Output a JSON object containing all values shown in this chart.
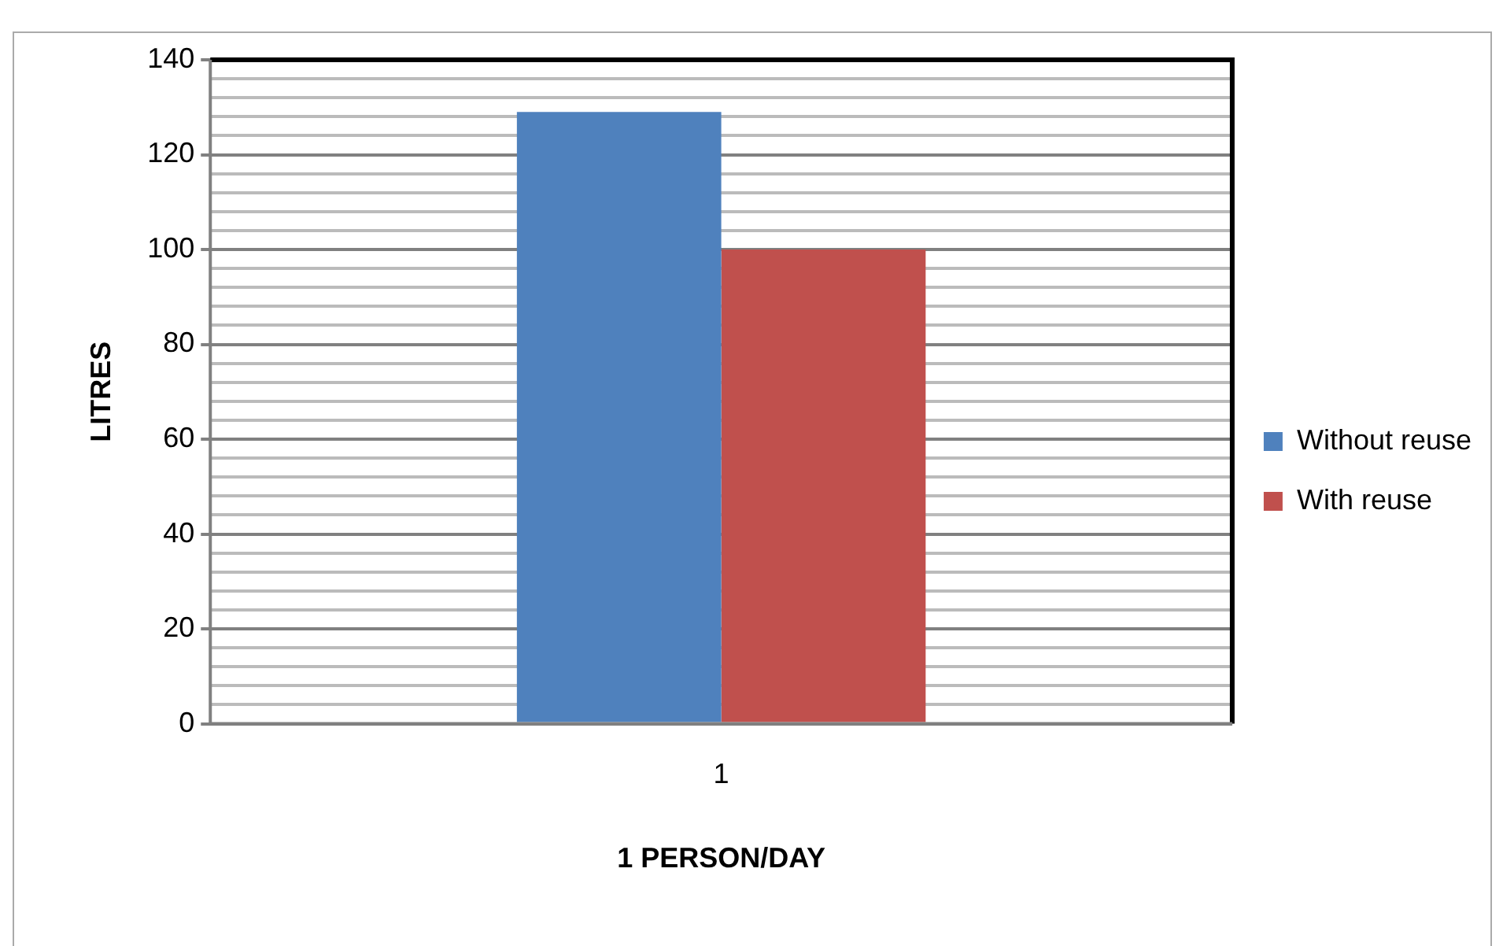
{
  "chart_data": {
    "type": "bar",
    "xlabel": "1 PERSON/DAY",
    "ylabel": "LITRES",
    "categories": [
      "1"
    ],
    "series": [
      {
        "name": "Without reuse",
        "color": "#4f81bd",
        "values": [
          129
        ]
      },
      {
        "name": "With reuse",
        "color": "#c0504d",
        "values": [
          100
        ]
      }
    ],
    "ylim": [
      0,
      140
    ],
    "yticks": [
      0,
      {
        "value": 4,
        "label": null
      },
      {
        "value": 8,
        "label": null
      },
      {
        "value": 12,
        "label": null
      },
      {
        "value": 16,
        "label": null
      },
      20,
      {
        "value": 24,
        "label": null
      },
      {
        "value": 28,
        "label": null
      },
      {
        "value": 32,
        "label": null
      },
      {
        "value": 36,
        "label": null
      },
      40,
      {
        "value": 44,
        "label": null
      },
      {
        "value": 48,
        "label": null
      },
      {
        "value": 52,
        "label": null
      },
      {
        "value": 56,
        "label": null
      },
      60,
      {
        "value": 64,
        "label": null
      },
      {
        "value": 68,
        "label": null
      },
      {
        "value": 72,
        "label": null
      },
      {
        "value": 76,
        "label": null
      },
      80,
      {
        "value": 84,
        "label": null
      },
      {
        "value": 88,
        "label": null
      },
      {
        "value": 92,
        "label": null
      },
      {
        "value": 96,
        "label": null
      },
      100,
      {
        "value": 104,
        "label": null
      },
      {
        "value": 108,
        "label": null
      },
      {
        "value": 112,
        "label": null
      },
      {
        "value": 116,
        "label": null
      },
      120,
      {
        "value": 124,
        "label": null
      },
      {
        "value": 128,
        "label": null
      },
      {
        "value": 132,
        "label": null
      },
      {
        "value": 136,
        "label": null
      },
      140
    ],
    "grid": "y",
    "legend": "right"
  }
}
